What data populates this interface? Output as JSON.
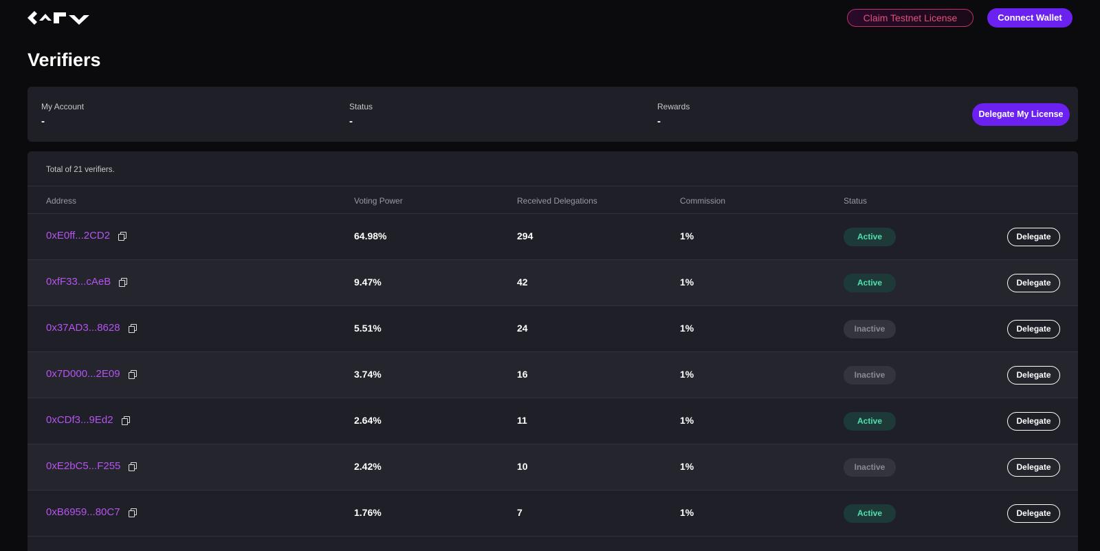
{
  "header": {
    "claim_label": "Claim Testnet License",
    "connect_label": "Connect Wallet"
  },
  "page_title": "Verifiers",
  "account": {
    "my_account_label": "My Account",
    "my_account_value": "-",
    "status_label": "Status",
    "status_value": "-",
    "rewards_label": "Rewards",
    "rewards_value": "-",
    "delegate_license_label": "Delegate My License"
  },
  "table": {
    "total_text": "Total of 21 verifiers.",
    "columns": [
      "Address",
      "Voting Power",
      "Received Delegations",
      "Commission",
      "Status"
    ],
    "delegate_label": "Delegate",
    "rows": [
      {
        "address": "0xE0ff...2CD2",
        "voting_power": "64.98%",
        "delegations": "294",
        "commission": "1%",
        "status": "Active"
      },
      {
        "address": "0xfF33...cAeB",
        "voting_power": "9.47%",
        "delegations": "42",
        "commission": "1%",
        "status": "Active"
      },
      {
        "address": "0x37AD3...8628",
        "voting_power": "5.51%",
        "delegations": "24",
        "commission": "1%",
        "status": "Inactive"
      },
      {
        "address": "0x7D000...2E09",
        "voting_power": "3.74%",
        "delegations": "16",
        "commission": "1%",
        "status": "Inactive"
      },
      {
        "address": "0xCDf3...9Ed2",
        "voting_power": "2.64%",
        "delegations": "11",
        "commission": "1%",
        "status": "Active"
      },
      {
        "address": "0xE2bC5...F255",
        "voting_power": "2.42%",
        "delegations": "10",
        "commission": "1%",
        "status": "Inactive"
      },
      {
        "address": "0xB6959...80C7",
        "voting_power": "1.76%",
        "delegations": "7",
        "commission": "1%",
        "status": "Active"
      }
    ]
  },
  "colors": {
    "accent": "#6b21f0",
    "address": "#b554f0",
    "active": "#4ee0b0",
    "inactive": "#8a8a94"
  }
}
